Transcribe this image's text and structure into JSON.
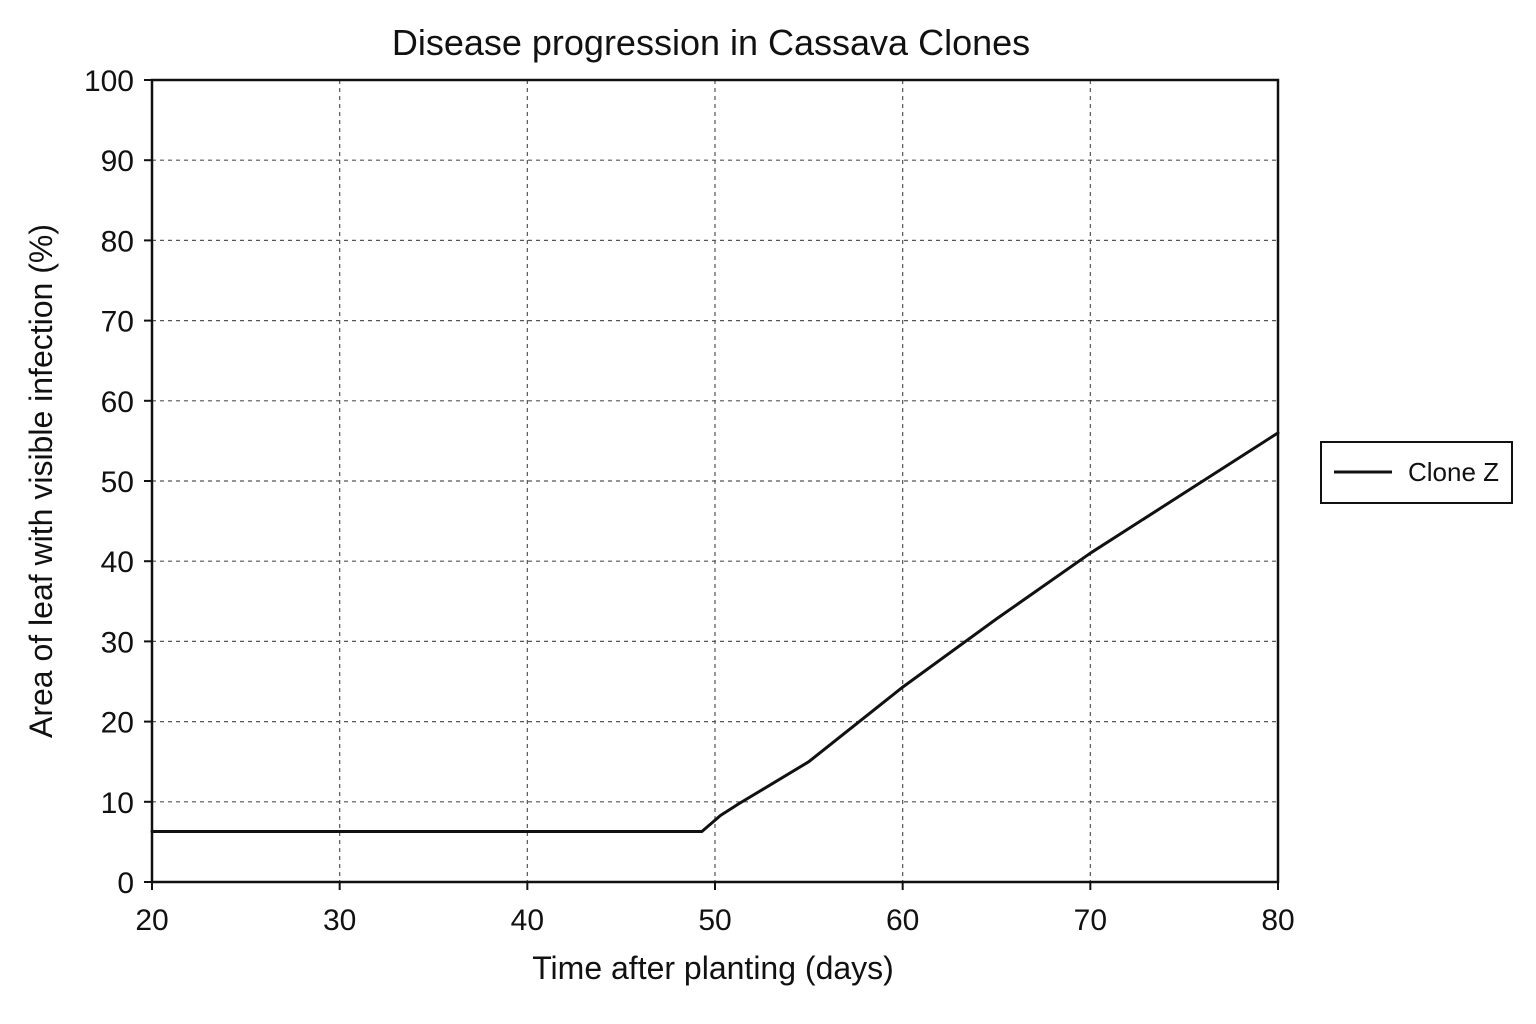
{
  "chart_data": {
    "type": "line",
    "title": "Disease progression in Cassava Clones",
    "xlabel": "Time after planting (days)",
    "ylabel": "Area of leaf with visible infection (%)",
    "xlim": [
      20,
      80
    ],
    "ylim": [
      0,
      100
    ],
    "x_ticks": [
      20,
      30,
      40,
      50,
      60,
      70,
      80
    ],
    "y_ticks": [
      0,
      10,
      20,
      30,
      40,
      50,
      60,
      70,
      80,
      90,
      100
    ],
    "grid": true,
    "legend_position": "right",
    "series": [
      {
        "name": "Clone Z",
        "color": "#111111",
        "x": [
          20,
          49.3,
          50.3,
          51.3,
          55,
          60,
          65,
          70,
          75,
          80
        ],
        "y": [
          6.3,
          6.3,
          8.3,
          9.8,
          15.0,
          24.3,
          32.8,
          41.0,
          48.5,
          56.0
        ]
      }
    ]
  }
}
